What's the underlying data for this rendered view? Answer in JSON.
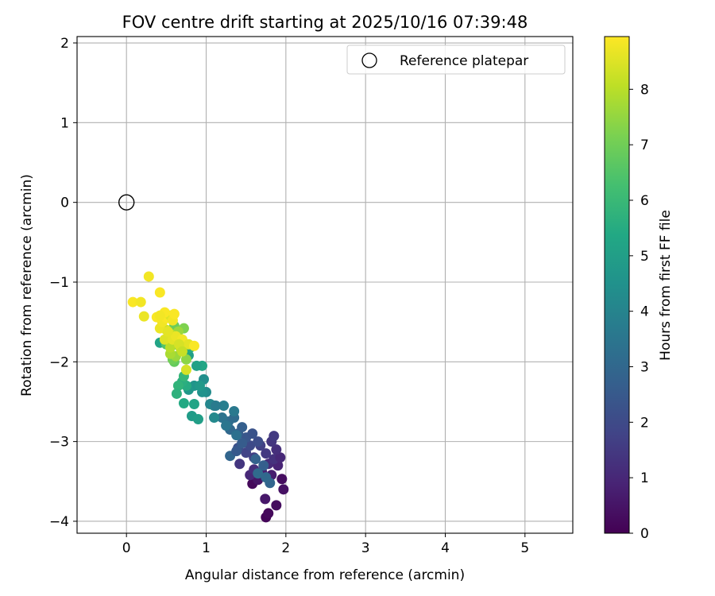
{
  "chart_data": {
    "type": "scatter",
    "title": "FOV centre drift starting at 2025/10/16 07:39:48",
    "xlabel": "Angular distance from reference (arcmin)",
    "ylabel": "Rotation from reference (arcmin)",
    "xlim": [
      -0.62,
      5.6
    ],
    "ylim": [
      -4.15,
      2.08
    ],
    "xticks": [
      0,
      1,
      2,
      3,
      4,
      5
    ],
    "yticks": [
      -4,
      -3,
      -2,
      -1,
      0,
      1,
      2
    ],
    "grid": true,
    "legend": {
      "position": "top-right",
      "entries": [
        "Reference platepar"
      ]
    },
    "reference_point": {
      "x": 0,
      "y": 0,
      "name": "Reference platepar",
      "marker": "open-circle",
      "color": "#000000"
    },
    "colorbar": {
      "label": "Hours from first FF file",
      "min": 0,
      "max": 8.95,
      "ticks": [
        0,
        1,
        2,
        3,
        4,
        5,
        6,
        7,
        8
      ],
      "colormap": "viridis",
      "colors": [
        "#440154",
        "#482475",
        "#414487",
        "#355f8d",
        "#2a788e",
        "#21918c",
        "#22a884",
        "#44bf70",
        "#7ad151",
        "#bddf26",
        "#fde725"
      ]
    },
    "points": [
      {
        "x": 1.75,
        "y": -3.95,
        "t": 0.1
      },
      {
        "x": 1.78,
        "y": -3.9,
        "t": 0.2
      },
      {
        "x": 1.88,
        "y": -3.8,
        "t": 0.3
      },
      {
        "x": 1.74,
        "y": -3.72,
        "t": 0.6
      },
      {
        "x": 1.97,
        "y": -3.6,
        "t": 0.4
      },
      {
        "x": 1.58,
        "y": -3.53,
        "t": 0.2
      },
      {
        "x": 1.65,
        "y": -3.48,
        "t": 0.5
      },
      {
        "x": 1.95,
        "y": -3.47,
        "t": 0.3
      },
      {
        "x": 1.82,
        "y": -3.42,
        "t": 0.7
      },
      {
        "x": 1.55,
        "y": -3.42,
        "t": 1.0
      },
      {
        "x": 1.7,
        "y": -3.38,
        "t": 0.8
      },
      {
        "x": 1.6,
        "y": -3.35,
        "t": 1.2
      },
      {
        "x": 1.9,
        "y": -3.3,
        "t": 0.9
      },
      {
        "x": 1.78,
        "y": -3.28,
        "t": 1.1
      },
      {
        "x": 1.42,
        "y": -3.28,
        "t": 1.4
      },
      {
        "x": 1.85,
        "y": -3.22,
        "t": 1.3
      },
      {
        "x": 1.93,
        "y": -3.2,
        "t": 1.0
      },
      {
        "x": 1.6,
        "y": -3.2,
        "t": 1.6
      },
      {
        "x": 1.75,
        "y": -3.15,
        "t": 1.5
      },
      {
        "x": 1.5,
        "y": -3.14,
        "t": 1.8
      },
      {
        "x": 1.88,
        "y": -3.1,
        "t": 1.2
      },
      {
        "x": 1.68,
        "y": -3.05,
        "t": 1.7
      },
      {
        "x": 1.55,
        "y": -3.05,
        "t": 2.0
      },
      {
        "x": 1.4,
        "y": -3.08,
        "t": 2.2
      },
      {
        "x": 1.82,
        "y": -3.0,
        "t": 1.4
      },
      {
        "x": 1.65,
        "y": -3.0,
        "t": 2.1
      },
      {
        "x": 1.85,
        "y": -2.93,
        "t": 1.5
      },
      {
        "x": 1.5,
        "y": -2.95,
        "t": 2.4
      },
      {
        "x": 1.4,
        "y": -2.9,
        "t": 2.6
      },
      {
        "x": 1.58,
        "y": -2.9,
        "t": 2.3
      },
      {
        "x": 1.45,
        "y": -2.82,
        "t": 2.7
      },
      {
        "x": 1.3,
        "y": -2.85,
        "t": 3.0
      },
      {
        "x": 1.28,
        "y": -2.75,
        "t": 3.2
      },
      {
        "x": 1.35,
        "y": -2.7,
        "t": 3.1
      },
      {
        "x": 1.2,
        "y": -2.7,
        "t": 3.4
      },
      {
        "x": 1.35,
        "y": -2.62,
        "t": 3.6
      },
      {
        "x": 1.22,
        "y": -2.55,
        "t": 3.8
      },
      {
        "x": 1.1,
        "y": -2.55,
        "t": 4.0
      },
      {
        "x": 1.05,
        "y": -2.53,
        "t": 4.1
      },
      {
        "x": 1.1,
        "y": -2.7,
        "t": 4.2
      },
      {
        "x": 1.3,
        "y": -3.18,
        "t": 2.9
      },
      {
        "x": 1.38,
        "y": -3.12,
        "t": 2.5
      },
      {
        "x": 1.45,
        "y": -3.02,
        "t": 2.6
      },
      {
        "x": 1.62,
        "y": -3.22,
        "t": 2.8
      },
      {
        "x": 1.72,
        "y": -3.3,
        "t": 2.7
      },
      {
        "x": 1.8,
        "y": -3.52,
        "t": 2.9
      },
      {
        "x": 1.65,
        "y": -3.4,
        "t": 3.1
      },
      {
        "x": 1.75,
        "y": -3.45,
        "t": 3.0
      },
      {
        "x": 1.38,
        "y": -2.92,
        "t": 3.3
      },
      {
        "x": 1.25,
        "y": -2.8,
        "t": 3.5
      },
      {
        "x": 1.12,
        "y": -2.55,
        "t": 3.7
      },
      {
        "x": 1.0,
        "y": -2.38,
        "t": 4.3
      },
      {
        "x": 0.95,
        "y": -2.38,
        "t": 4.5
      },
      {
        "x": 0.97,
        "y": -2.22,
        "t": 4.4
      },
      {
        "x": 0.85,
        "y": -2.3,
        "t": 4.6
      },
      {
        "x": 0.92,
        "y": -2.3,
        "t": 4.8
      },
      {
        "x": 0.78,
        "y": -2.35,
        "t": 4.7
      },
      {
        "x": 0.82,
        "y": -2.68,
        "t": 4.9
      },
      {
        "x": 0.9,
        "y": -2.72,
        "t": 5.0
      },
      {
        "x": 0.85,
        "y": -2.53,
        "t": 5.2
      },
      {
        "x": 0.72,
        "y": -2.52,
        "t": 5.4
      },
      {
        "x": 0.75,
        "y": -2.3,
        "t": 5.5
      },
      {
        "x": 0.7,
        "y": -2.25,
        "t": 5.6
      },
      {
        "x": 0.65,
        "y": -2.3,
        "t": 5.8
      },
      {
        "x": 0.63,
        "y": -2.4,
        "t": 5.7
      },
      {
        "x": 0.72,
        "y": -2.18,
        "t": 5.9
      },
      {
        "x": 0.95,
        "y": -2.05,
        "t": 5.3
      },
      {
        "x": 0.88,
        "y": -2.05,
        "t": 5.1
      },
      {
        "x": 0.78,
        "y": -1.92,
        "t": 5.0
      },
      {
        "x": 0.75,
        "y": -1.85,
        "t": 5.3
      },
      {
        "x": 0.8,
        "y": -1.82,
        "t": 5.5
      },
      {
        "x": 0.42,
        "y": -1.76,
        "t": 5.2
      },
      {
        "x": 0.7,
        "y": -1.75,
        "t": 6.0
      },
      {
        "x": 0.62,
        "y": -1.78,
        "t": 6.2
      },
      {
        "x": 0.5,
        "y": -1.78,
        "t": 6.5
      },
      {
        "x": 0.6,
        "y": -2.0,
        "t": 6.8
      },
      {
        "x": 0.58,
        "y": -1.97,
        "t": 7.0
      },
      {
        "x": 0.75,
        "y": -1.97,
        "t": 7.4
      },
      {
        "x": 0.62,
        "y": -1.93,
        "t": 7.6
      },
      {
        "x": 0.55,
        "y": -1.9,
        "t": 7.8
      },
      {
        "x": 0.55,
        "y": -1.82,
        "t": 8.0
      },
      {
        "x": 0.68,
        "y": -1.83,
        "t": 8.2
      },
      {
        "x": 0.75,
        "y": -2.1,
        "t": 8.4
      },
      {
        "x": 0.6,
        "y": -1.55,
        "t": 6.9
      },
      {
        "x": 0.72,
        "y": -1.58,
        "t": 7.2
      },
      {
        "x": 0.65,
        "y": -1.62,
        "t": 7.6
      },
      {
        "x": 0.55,
        "y": -1.65,
        "t": 8.1
      },
      {
        "x": 0.5,
        "y": -1.6,
        "t": 8.3
      },
      {
        "x": 0.48,
        "y": -1.72,
        "t": 8.5
      },
      {
        "x": 0.58,
        "y": -1.72,
        "t": 8.6
      },
      {
        "x": 0.62,
        "y": -1.68,
        "t": 8.7
      },
      {
        "x": 0.7,
        "y": -1.72,
        "t": 8.8
      },
      {
        "x": 0.78,
        "y": -1.78,
        "t": 8.6
      },
      {
        "x": 0.85,
        "y": -1.8,
        "t": 8.9
      },
      {
        "x": 0.42,
        "y": -1.58,
        "t": 8.7
      },
      {
        "x": 0.45,
        "y": -1.5,
        "t": 8.8
      },
      {
        "x": 0.5,
        "y": -1.45,
        "t": 8.9
      },
      {
        "x": 0.55,
        "y": -1.42,
        "t": 8.5
      },
      {
        "x": 0.48,
        "y": -1.38,
        "t": 8.9
      },
      {
        "x": 0.58,
        "y": -1.48,
        "t": 8.8
      },
      {
        "x": 0.6,
        "y": -1.4,
        "t": 8.9
      },
      {
        "x": 0.38,
        "y": -1.44,
        "t": 8.9
      },
      {
        "x": 0.42,
        "y": -1.42,
        "t": 8.8
      },
      {
        "x": 0.22,
        "y": -1.43,
        "t": 8.7
      },
      {
        "x": 0.08,
        "y": -1.25,
        "t": 8.9
      },
      {
        "x": 0.18,
        "y": -1.25,
        "t": 8.8
      },
      {
        "x": 0.42,
        "y": -1.13,
        "t": 8.9
      },
      {
        "x": 0.28,
        "y": -0.93,
        "t": 8.8
      },
      {
        "x": 0.52,
        "y": -1.62,
        "t": 8.6
      },
      {
        "x": 0.66,
        "y": -1.78,
        "t": 8.4
      },
      {
        "x": 0.7,
        "y": -1.87,
        "t": 8.2
      }
    ]
  }
}
